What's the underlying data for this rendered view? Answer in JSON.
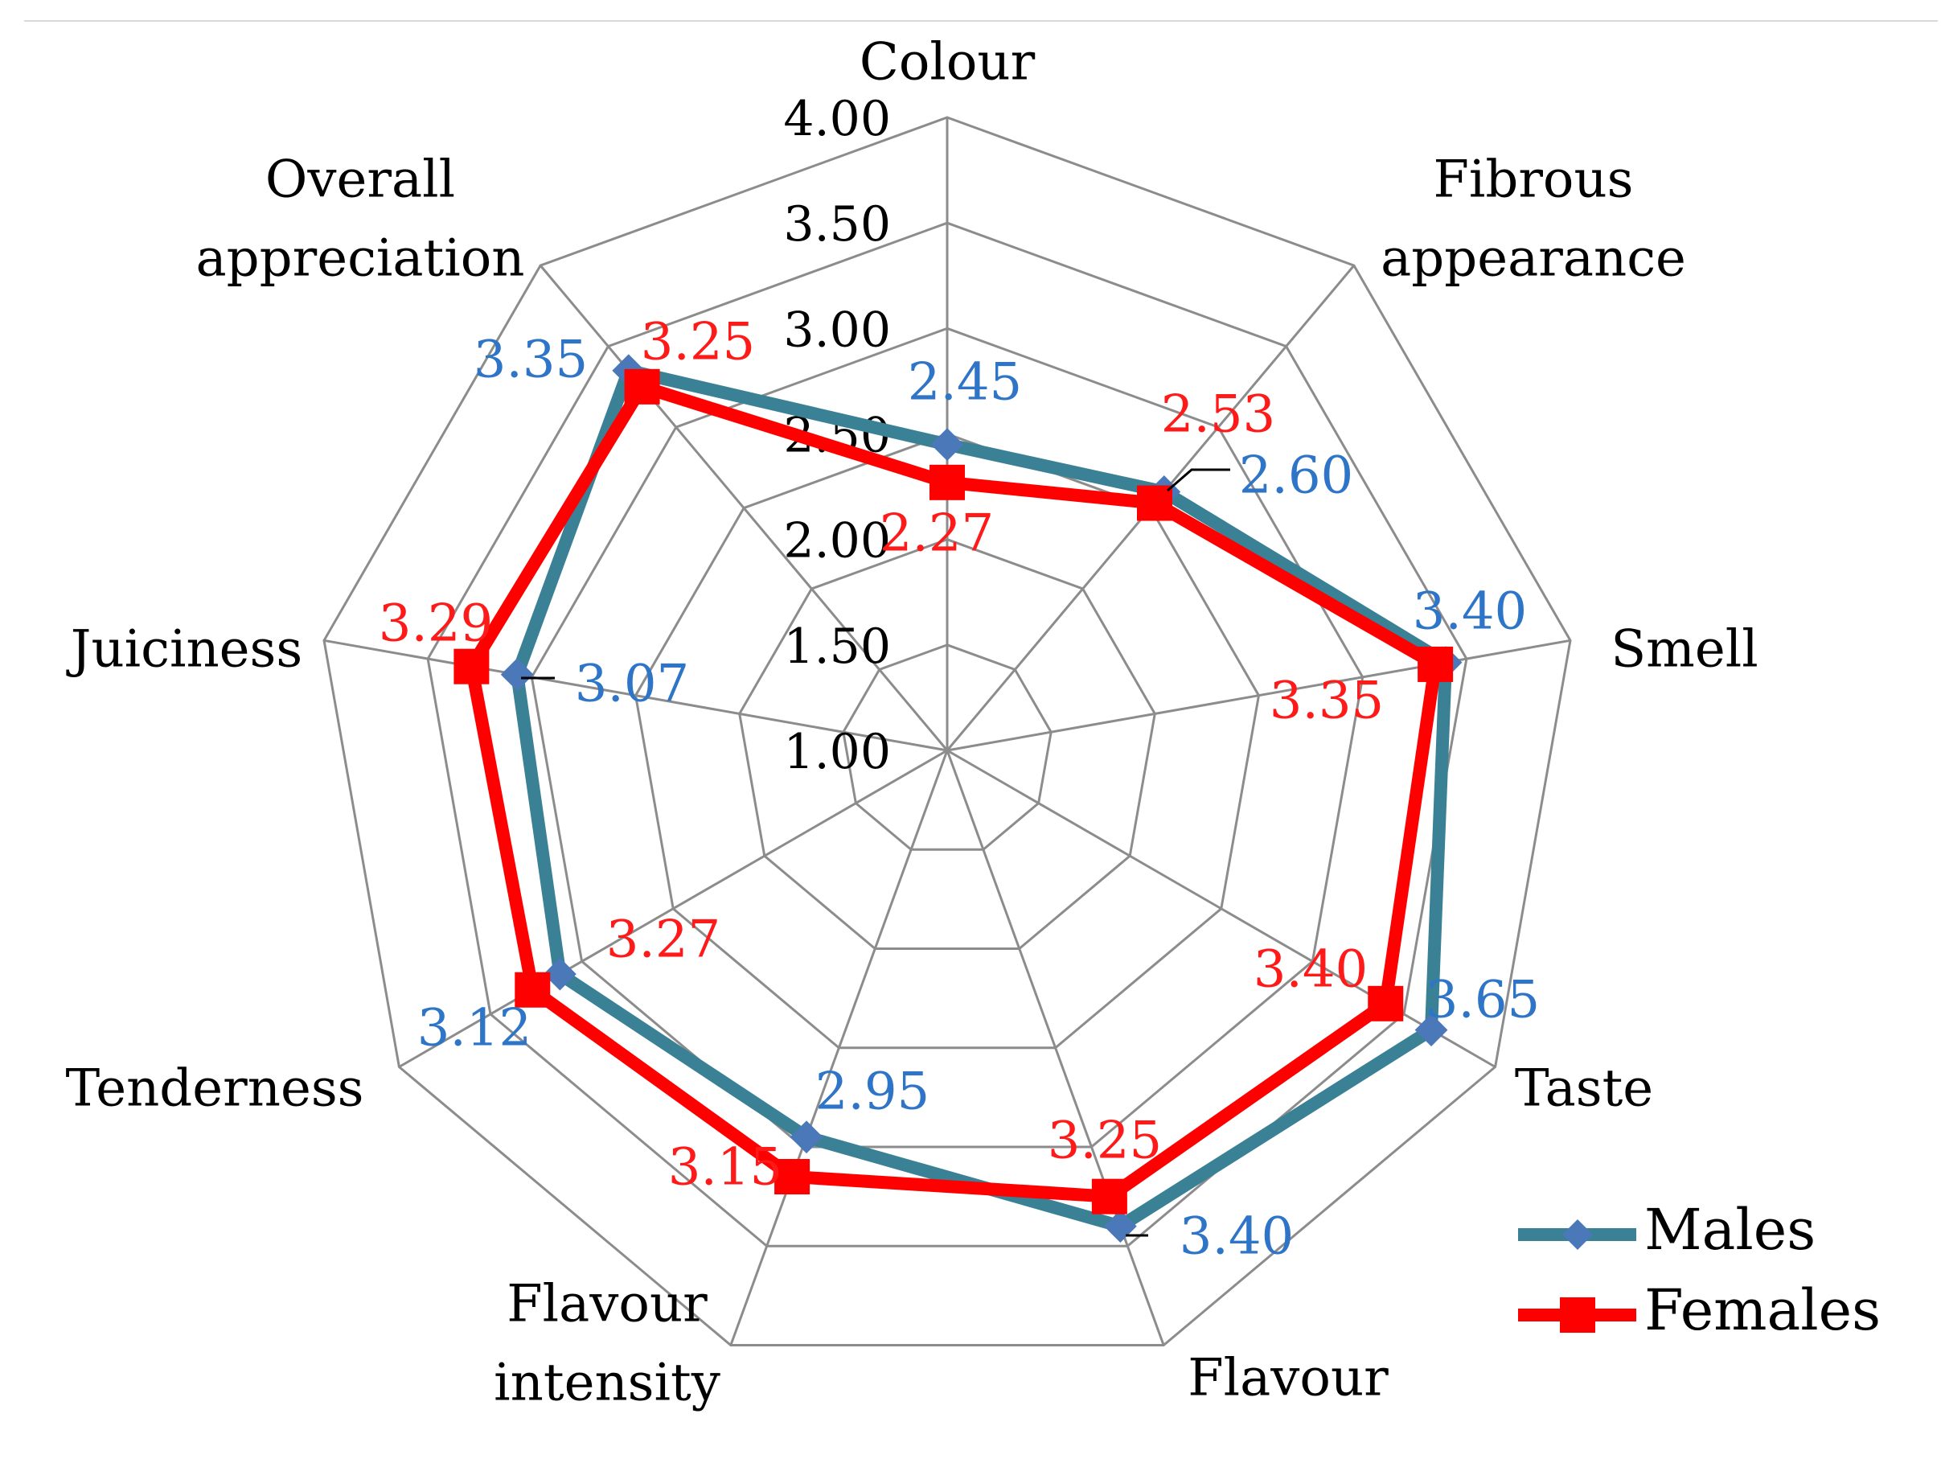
{
  "chart_data": {
    "type": "radar",
    "categories": [
      "Colour",
      "Fibrous appearance",
      "Smell",
      "Taste",
      "Flavour",
      "Flavour intensity",
      "Tenderness",
      "Juiciness",
      "Overall appreciation"
    ],
    "category_label_lines": [
      [
        "Colour"
      ],
      [
        "Fibrous",
        "appearance"
      ],
      [
        "Smell"
      ],
      [
        "Taste"
      ],
      [
        "Flavour"
      ],
      [
        "Flavour",
        "intensity"
      ],
      [
        "Tenderness"
      ],
      [
        "Juiciness"
      ],
      [
        "Overall",
        "appreciation"
      ]
    ],
    "series": [
      {
        "name": "Males",
        "values": [
          2.45,
          2.6,
          3.4,
          3.65,
          3.4,
          2.95,
          3.12,
          3.07,
          3.35
        ],
        "labels": [
          "2.45",
          "2.60",
          "3.40",
          "3.65",
          "3.40",
          "2.95",
          "3.12",
          "3.07",
          "3.35"
        ],
        "color": "#3b8196",
        "marker": "diamond",
        "marker_color": "#4a78b8",
        "label_color": "#2e75c8"
      },
      {
        "name": "Females",
        "values": [
          2.27,
          2.53,
          3.35,
          3.4,
          3.25,
          3.15,
          3.27,
          3.29,
          3.25
        ],
        "labels": [
          "2.27",
          "2.53",
          "3.35",
          "3.40",
          "3.25",
          "3.15",
          "3.27",
          "3.29",
          "3.25"
        ],
        "color": "#ff0000",
        "marker": "square",
        "marker_color": "#ff0000",
        "label_color": "#ff1a1a"
      }
    ],
    "axis_min": 1.0,
    "axis_max": 4.0,
    "ticks": [
      1.0,
      1.5,
      2.0,
      2.5,
      3.0,
      3.5,
      4.0
    ],
    "tick_labels": [
      "1.00",
      "1.50",
      "2.00",
      "2.50",
      "3.00",
      "3.50",
      "4.00"
    ],
    "grid": true,
    "grid_color": "#8c8c8c",
    "legend_position": "bottom-right"
  }
}
